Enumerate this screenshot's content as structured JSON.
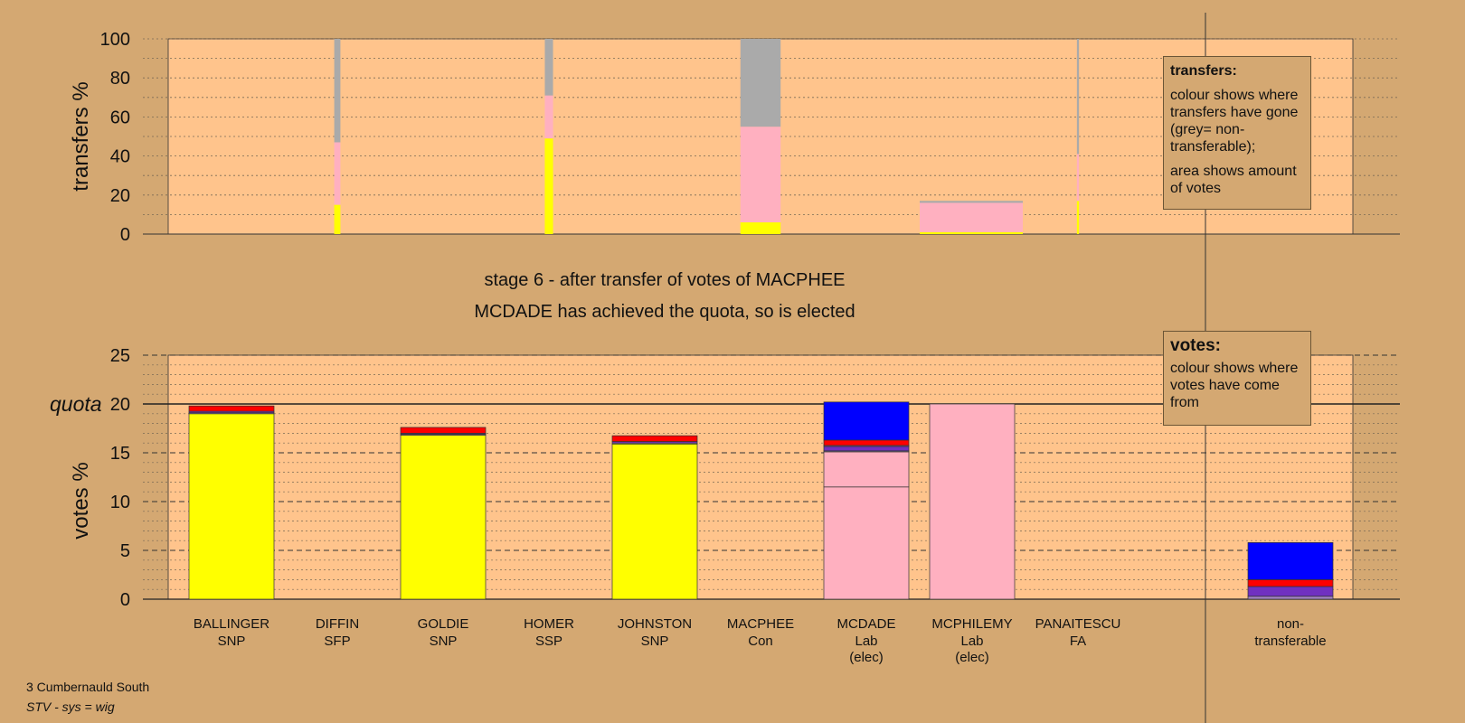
{
  "stage": {
    "title": "stage 6 - after transfer of votes of MACPHEE",
    "result": "MCDADE has achieved the quota, so is elected"
  },
  "legend": {
    "transfers": {
      "title": "transfers:",
      "line1": "colour shows where transfers have gone (grey= non-transferable);",
      "line2": "area shows amount of votes"
    },
    "votes": {
      "title": "votes:",
      "line1": "colour shows where votes have come from"
    }
  },
  "footer": {
    "constituency": "3 Cumbernauld South",
    "system": "STV - sys = wig"
  },
  "colors": {
    "background": "#d4a872",
    "plot_area": "#ffc48c",
    "SNP": "#ffff00",
    "Lab": "#ffb0c0",
    "Con": "#0000ff",
    "SSP": "#ff0000",
    "SFP": "#7030c0",
    "FA": "#a080c0",
    "non_transferable": "#aaaaaa"
  },
  "chart_data": [
    {
      "type": "bar",
      "name": "transfers",
      "ylabel": "transfers %",
      "ylim": [
        0,
        100
      ],
      "yticks": [
        0,
        20,
        40,
        60,
        80,
        100
      ],
      "grid": true,
      "bars": [
        {
          "candidate": "DIFFIN",
          "width_share": 0.06,
          "segments": [
            {
              "to": "SNP",
              "value": 15
            },
            {
              "to": "Lab",
              "value": 32
            },
            {
              "to": "non-transferable",
              "value": 53
            }
          ]
        },
        {
          "candidate": "HOMER",
          "width_share": 0.08,
          "segments": [
            {
              "to": "SNP",
              "value": 49
            },
            {
              "to": "Lab",
              "value": 22
            },
            {
              "to": "non-transferable",
              "value": 29
            }
          ]
        },
        {
          "candidate": "MACPHEE",
          "width_share": 0.39,
          "segments": [
            {
              "to": "SNP",
              "value": 6
            },
            {
              "to": "Lab",
              "value": 49
            },
            {
              "to": "non-transferable",
              "value": 45
            }
          ]
        },
        {
          "candidate": "MCPHILEMY",
          "width_share": 1.0,
          "segments": [
            {
              "to": "SNP",
              "value": 1
            },
            {
              "to": "Lab",
              "value": 15
            },
            {
              "to": "non-transferable",
              "value": 1
            }
          ]
        },
        {
          "candidate": "PANAITESCU",
          "width_share": 0.02,
          "segments": [
            {
              "to": "SNP",
              "value": 17
            },
            {
              "to": "Lab",
              "value": 24
            },
            {
              "to": "non-transferable",
              "value": 59
            }
          ]
        }
      ]
    },
    {
      "type": "bar",
      "name": "votes",
      "ylabel": "votes %",
      "ylim": [
        0,
        25
      ],
      "yticks": [
        0,
        5,
        10,
        15,
        20,
        25
      ],
      "quota": 20,
      "quota_label": "quota",
      "grid": true,
      "categories": [
        "BALLINGER",
        "DIFFIN",
        "GOLDIE",
        "HOMER",
        "JOHNSTON",
        "MACPHEE",
        "MCDADE",
        "MCPHILEMY",
        "PANAITESCU",
        "non-"
      ],
      "parties": [
        "SNP",
        "SFP",
        "SNP",
        "SSP",
        "SNP",
        "Con",
        "Lab",
        "Lab",
        "FA",
        "transferable"
      ],
      "status": [
        "",
        "",
        "",
        "",
        "",
        "",
        "(elec)",
        "(elec)",
        "",
        ""
      ],
      "stacks": [
        [
          {
            "from": "SNP",
            "value": 19.0
          },
          {
            "from": "FA",
            "value": 0.1
          },
          {
            "from": "SFP",
            "value": 0.15
          },
          {
            "from": "SSP",
            "value": 0.55
          }
        ],
        [],
        [
          {
            "from": "SNP",
            "value": 16.8
          },
          {
            "from": "FA",
            "value": 0.1
          },
          {
            "from": "SFP",
            "value": 0.1
          },
          {
            "from": "SSP",
            "value": 0.6
          }
        ],
        [],
        [
          {
            "from": "SNP",
            "value": 15.9
          },
          {
            "from": "FA",
            "value": 0.1
          },
          {
            "from": "SFP",
            "value": 0.15
          },
          {
            "from": "SSP",
            "value": 0.6
          }
        ],
        [],
        [
          {
            "from": "Lab",
            "value": 11.5
          },
          {
            "from": "Lab",
            "value": 3.6
          },
          {
            "from": "FA",
            "value": 0.1
          },
          {
            "from": "SFP",
            "value": 0.45
          },
          {
            "from": "FA",
            "value": 0.1
          },
          {
            "from": "SSP",
            "value": 0.55
          },
          {
            "from": "Con",
            "value": 3.9
          }
        ],
        [
          {
            "from": "Lab",
            "value": 20.0
          }
        ],
        [],
        [
          {
            "from": "FA",
            "value": 0.3
          },
          {
            "from": "SFP",
            "value": 1.0
          },
          {
            "from": "SSP",
            "value": 0.7
          },
          {
            "from": "Con",
            "value": 3.8
          }
        ]
      ]
    }
  ]
}
